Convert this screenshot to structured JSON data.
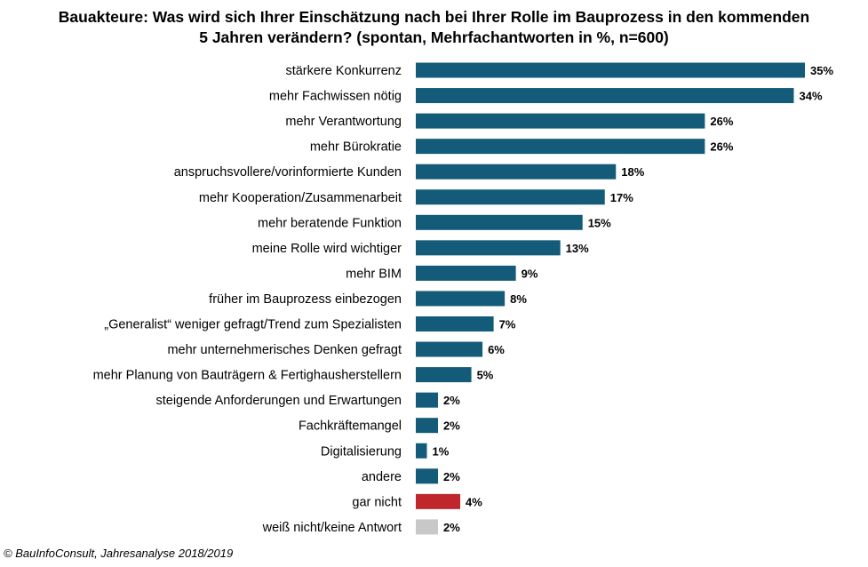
{
  "chart_data": {
    "type": "bar",
    "orientation": "horizontal",
    "title_lines": [
      "Bauakteure: Was wird sich Ihrer Einschätzung  nach bei Ihrer Rolle im Bauprozess in den kommenden",
      "5 Jahren verändern? (spontan, Mehrfachantworten in %, n=600)"
    ],
    "categories": [
      "stärkere Konkurrenz",
      "mehr Fachwissen nötig",
      "mehr Verantwortung",
      "mehr Bürokratie",
      "anspruchsvollere/vorinformierte Kunden",
      "mehr Kooperation/Zusammenarbeit",
      "mehr beratende Funktion",
      "meine Rolle wird wichtiger",
      "mehr BIM",
      "früher im Bauprozess einbezogen",
      "„Generalist“ weniger gefragt/Trend zum Spezialisten",
      "mehr unternehmerisches Denken gefragt",
      "mehr Planung von Bauträgern & Fertighausherstellern",
      "steigende Anforderungen und Erwartungen",
      "Fachkräftemangel",
      "Digitalisierung",
      "andere",
      "gar nicht",
      "weiß nicht/keine Antwort"
    ],
    "values": [
      35,
      34,
      26,
      26,
      18,
      17,
      15,
      13,
      9,
      8,
      7,
      6,
      5,
      2,
      2,
      1,
      2,
      4,
      2
    ],
    "value_labels": [
      "35%",
      "34%",
      "26%",
      "26%",
      "18%",
      "17%",
      "15%",
      "13%",
      "9%",
      "8%",
      "7%",
      "6%",
      "5%",
      "2%",
      "2%",
      "1%",
      "2%",
      "4%",
      "2%"
    ],
    "bar_colors": [
      "#135b78",
      "#135b78",
      "#135b78",
      "#135b78",
      "#135b78",
      "#135b78",
      "#135b78",
      "#135b78",
      "#135b78",
      "#135b78",
      "#135b78",
      "#135b78",
      "#135b78",
      "#135b78",
      "#135b78",
      "#135b78",
      "#135b78",
      "#c0272d",
      "#c8c8c8"
    ],
    "xlim": [
      0,
      35
    ],
    "grid": false,
    "legend": "none"
  },
  "source": "© BauInfoConsult, Jahresanalyse 2018/2019"
}
